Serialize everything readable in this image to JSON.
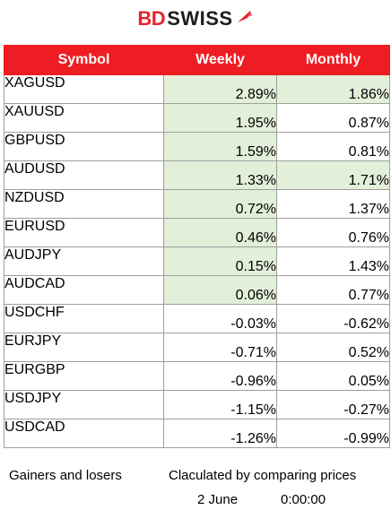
{
  "brand": {
    "part1": "BD",
    "part2": "SWISS",
    "accent_color": "#ee1d23"
  },
  "table": {
    "headers": [
      "Symbol",
      "Weekly",
      "Monthly"
    ],
    "rows": [
      {
        "symbol": "XAGUSD",
        "weekly": "2.89%",
        "monthly": "1.86%",
        "weekly_green": true,
        "monthly_green": true
      },
      {
        "symbol": "XAUUSD",
        "weekly": "1.95%",
        "monthly": "0.87%",
        "weekly_green": true,
        "monthly_green": false
      },
      {
        "symbol": "GBPUSD",
        "weekly": "1.59%",
        "monthly": "0.81%",
        "weekly_green": true,
        "monthly_green": false
      },
      {
        "symbol": "AUDUSD",
        "weekly": "1.33%",
        "monthly": "1.71%",
        "weekly_green": true,
        "monthly_green": true
      },
      {
        "symbol": "NZDUSD",
        "weekly": "0.72%",
        "monthly": "1.37%",
        "weekly_green": true,
        "monthly_green": false
      },
      {
        "symbol": "EURUSD",
        "weekly": "0.46%",
        "monthly": "0.76%",
        "weekly_green": true,
        "monthly_green": false
      },
      {
        "symbol": "AUDJPY",
        "weekly": "0.15%",
        "monthly": "1.43%",
        "weekly_green": true,
        "monthly_green": false
      },
      {
        "symbol": "AUDCAD",
        "weekly": "0.06%",
        "monthly": "0.77%",
        "weekly_green": true,
        "monthly_green": false
      },
      {
        "symbol": "USDCHF",
        "weekly": "-0.03%",
        "monthly": "-0.62%",
        "weekly_green": false,
        "monthly_green": false
      },
      {
        "symbol": "EURJPY",
        "weekly": "-0.71%",
        "monthly": "0.52%",
        "weekly_green": false,
        "monthly_green": false
      },
      {
        "symbol": "EURGBP",
        "weekly": "-0.96%",
        "monthly": "0.05%",
        "weekly_green": false,
        "monthly_green": false
      },
      {
        "symbol": "USDJPY",
        "weekly": "-1.15%",
        "monthly": "-0.27%",
        "weekly_green": false,
        "monthly_green": false
      },
      {
        "symbol": "USDCAD",
        "weekly": "-1.26%",
        "monthly": "-0.99%",
        "weekly_green": false,
        "monthly_green": false
      }
    ],
    "highlight_color": "#e2efd9"
  },
  "footer": {
    "left": "Gainers and losers",
    "right": "Claculated by comparing prices",
    "date": "2 June",
    "time": "0:00:00"
  }
}
